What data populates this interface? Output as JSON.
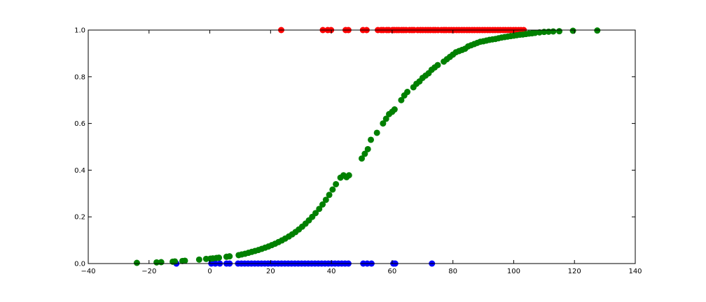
{
  "chart_data": {
    "type": "scatter",
    "title": "",
    "xlabel": "",
    "ylabel": "",
    "xlim": [
      -40,
      140
    ],
    "ylim": [
      0.0,
      1.0
    ],
    "grid": false,
    "legend": "none",
    "x_ticks": [
      -40,
      -20,
      0,
      20,
      40,
      60,
      80,
      100,
      120,
      140
    ],
    "x_tick_labels": [
      "−40",
      "−20",
      "0",
      "20",
      "40",
      "60",
      "80",
      "100",
      "120",
      "140"
    ],
    "y_ticks": [
      0.0,
      0.2,
      0.4,
      0.6,
      0.8,
      1.0
    ],
    "y_tick_labels": [
      "0.0",
      "0.2",
      "0.4",
      "0.6",
      "0.8",
      "1.0"
    ],
    "series": [
      {
        "color": "#ff0000",
        "x": [
          23.5,
          37.2,
          38.8,
          39.9,
          44.7,
          45.6,
          50.4,
          51.6,
          55.3,
          56.4,
          57.1,
          58.2,
          58.9,
          60.1,
          60.7,
          61.5,
          62.2,
          63.1,
          63.8,
          64.6,
          65.7,
          66.5,
          67.2,
          68.4,
          69.3,
          70.1,
          71.0,
          71.8,
          72.6,
          73.5,
          74.2,
          75.1,
          76.2,
          77.0,
          77.8,
          78.7,
          79.5,
          80.3,
          81.2,
          82.0,
          82.9,
          83.7,
          84.6,
          85.4,
          86.3,
          87.1,
          88.0,
          88.8,
          89.7,
          90.5,
          91.4,
          92.2,
          93.1,
          93.9,
          94.8,
          95.6,
          96.5,
          97.3,
          98.2,
          99.0,
          99.9,
          100.7,
          101.6,
          102.4,
          103.3
        ],
        "y": [
          1,
          1,
          1,
          1,
          1,
          1,
          1,
          1,
          1,
          1,
          1,
          1,
          1,
          1,
          1,
          1,
          1,
          1,
          1,
          1,
          1,
          1,
          1,
          1,
          1,
          1,
          1,
          1,
          1,
          1,
          1,
          1,
          1,
          1,
          1,
          1,
          1,
          1,
          1,
          1,
          1,
          1,
          1,
          1,
          1,
          1,
          1,
          1,
          1,
          1,
          1,
          1,
          1,
          1,
          1,
          1,
          1,
          1,
          1,
          1,
          1,
          1,
          1,
          1,
          1
        ]
      },
      {
        "color": "#0000ff",
        "x": [
          -11.0,
          0.5,
          1.8,
          3.3,
          5.5,
          6.5,
          9.3,
          10.4,
          11.5,
          12.6,
          13.7,
          14.8,
          15.9,
          17.0,
          18.1,
          19.2,
          20.3,
          21.4,
          22.5,
          23.6,
          24.7,
          25.8,
          26.9,
          28.0,
          29.1,
          30.2,
          31.3,
          32.4,
          33.5,
          34.6,
          35.7,
          36.8,
          37.9,
          39.0,
          40.1,
          41.2,
          42.3,
          43.4,
          44.5,
          45.6,
          50.5,
          51.8,
          53.2,
          60.4,
          61.0,
          73.1
        ],
        "y": [
          0,
          0,
          0,
          0,
          0,
          0,
          0,
          0,
          0,
          0,
          0,
          0,
          0,
          0,
          0,
          0,
          0,
          0,
          0,
          0,
          0,
          0,
          0,
          0,
          0,
          0,
          0,
          0,
          0,
          0,
          0,
          0,
          0,
          0,
          0,
          0,
          0,
          0,
          0,
          0,
          0,
          0,
          0,
          0,
          0,
          0
        ]
      },
      {
        "color": "#008000",
        "x": [
          -24.0,
          -17.5,
          -16.0,
          -12.2,
          -11.5,
          -9.0,
          -8.2,
          -3.5,
          -1.2,
          0.2,
          1.0,
          2.2,
          3.0,
          5.5,
          6.5,
          9.5,
          10.5,
          11.6,
          12.7,
          13.8,
          14.9,
          16.0,
          17.1,
          18.2,
          19.3,
          20.4,
          21.5,
          22.6,
          23.7,
          24.8,
          26.0,
          27.1,
          28.2,
          29.3,
          30.4,
          31.5,
          32.6,
          33.7,
          34.8,
          36.0,
          37.1,
          38.2,
          39.3,
          40.4,
          41.5,
          43.0,
          44.0,
          45.0,
          45.8,
          50.0,
          51.0,
          52.0,
          53.0,
          55.0,
          57.0,
          58.0,
          59.0,
          60.0,
          60.8,
          63.0,
          64.0,
          65.0,
          67.0,
          68.0,
          69.0,
          70.0,
          71.0,
          72.0,
          73.0,
          74.0,
          75.0,
          77.0,
          78.0,
          79.0,
          80.0,
          81.0,
          82.0,
          83.0,
          84.0,
          85.0,
          86.0,
          87.0,
          88.0,
          89.0,
          90.0,
          91.0,
          92.0,
          93.0,
          94.0,
          95.0,
          96.0,
          97.0,
          98.0,
          99.0,
          100.0,
          101.0,
          102.0,
          103.0,
          104.0,
          105.0,
          106.0,
          107.0,
          108.5,
          110.0,
          111.5,
          113.0,
          115.0,
          119.5,
          127.5
        ],
        "y": [
          0.003,
          0.005,
          0.006,
          0.008,
          0.009,
          0.011,
          0.012,
          0.017,
          0.02,
          0.021,
          0.022,
          0.024,
          0.025,
          0.029,
          0.031,
          0.036,
          0.039,
          0.042,
          0.046,
          0.05,
          0.054,
          0.058,
          0.063,
          0.068,
          0.073,
          0.079,
          0.085,
          0.092,
          0.099,
          0.107,
          0.116,
          0.125,
          0.135,
          0.146,
          0.158,
          0.171,
          0.185,
          0.2,
          0.216,
          0.234,
          0.253,
          0.273,
          0.294,
          0.317,
          0.34,
          0.368,
          0.378,
          0.37,
          0.378,
          0.45,
          0.47,
          0.49,
          0.53,
          0.56,
          0.6,
          0.62,
          0.64,
          0.65,
          0.66,
          0.7,
          0.72,
          0.735,
          0.755,
          0.77,
          0.78,
          0.795,
          0.805,
          0.815,
          0.83,
          0.84,
          0.85,
          0.865,
          0.875,
          0.885,
          0.895,
          0.905,
          0.91,
          0.915,
          0.92,
          0.93,
          0.935,
          0.94,
          0.945,
          0.95,
          0.952,
          0.955,
          0.958,
          0.96,
          0.962,
          0.965,
          0.968,
          0.97,
          0.972,
          0.974,
          0.976,
          0.978,
          0.98,
          0.981,
          0.983,
          0.985,
          0.986,
          0.988,
          0.99,
          0.992,
          0.993,
          0.994,
          0.995,
          0.997,
          0.998
        ]
      }
    ]
  }
}
